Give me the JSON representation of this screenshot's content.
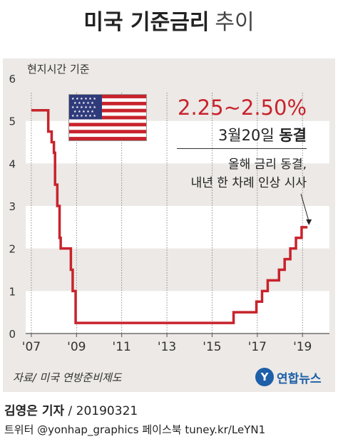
{
  "title": {
    "main": "미국 기준금리",
    "suffix": "추이"
  },
  "chart_data": {
    "type": "line",
    "ylabel": "현지시간 기준",
    "ylim": [
      0,
      6
    ],
    "yticks": [
      0,
      1,
      2,
      3,
      4,
      5,
      6
    ],
    "xlim": [
      2006.75,
      2019.75
    ],
    "xticks": [
      2007,
      2009,
      2011,
      2013,
      2015,
      2017,
      2019
    ],
    "xtick_labels": [
      "'07",
      "'09",
      "'11",
      "'13",
      "'15",
      "'17",
      "'19"
    ],
    "series": [
      {
        "color": "#c8232c",
        "x": [
          2007.0,
          2007.6,
          2007.75,
          2007.9,
          2008.0,
          2008.05,
          2008.15,
          2008.25,
          2008.3,
          2008.75,
          2008.83,
          2008.96,
          2015.95,
          2016.96,
          2017.21,
          2017.46,
          2017.96,
          2018.21,
          2018.46,
          2018.71,
          2018.96,
          2019.22
        ],
        "values": [
          5.25,
          5.25,
          4.75,
          4.5,
          4.25,
          3.5,
          3.0,
          2.25,
          2.0,
          1.5,
          1.0,
          0.25,
          0.5,
          0.75,
          1.0,
          1.25,
          1.5,
          1.75,
          2.0,
          2.25,
          2.5,
          2.5
        ]
      }
    ],
    "grid": "alternating-bands"
  },
  "callout": {
    "rate": "2.25~2.50%",
    "date_prefix": "3월20일",
    "date_status": "동결",
    "note_line1": "올해 금리 동결,",
    "note_line2": "내년 한 차례 인상 시사"
  },
  "source": "자료/ 미국 연방준비제도",
  "logo": {
    "text": "연합뉴스",
    "badge": "Y"
  },
  "byline": {
    "reporter": "김영은 기자",
    "date": "20190321"
  },
  "credits": "트위터 @yonhap_graphics  페이스북 tuney.kr/LeYN1",
  "colors": {
    "line": "#c8232c",
    "band": "#ece9e6",
    "band_alt": "#ffffff",
    "logo": "#1d5fa8"
  },
  "icons": {
    "flag": "us-flag-icon",
    "logo": "yonhap-logo-icon"
  }
}
